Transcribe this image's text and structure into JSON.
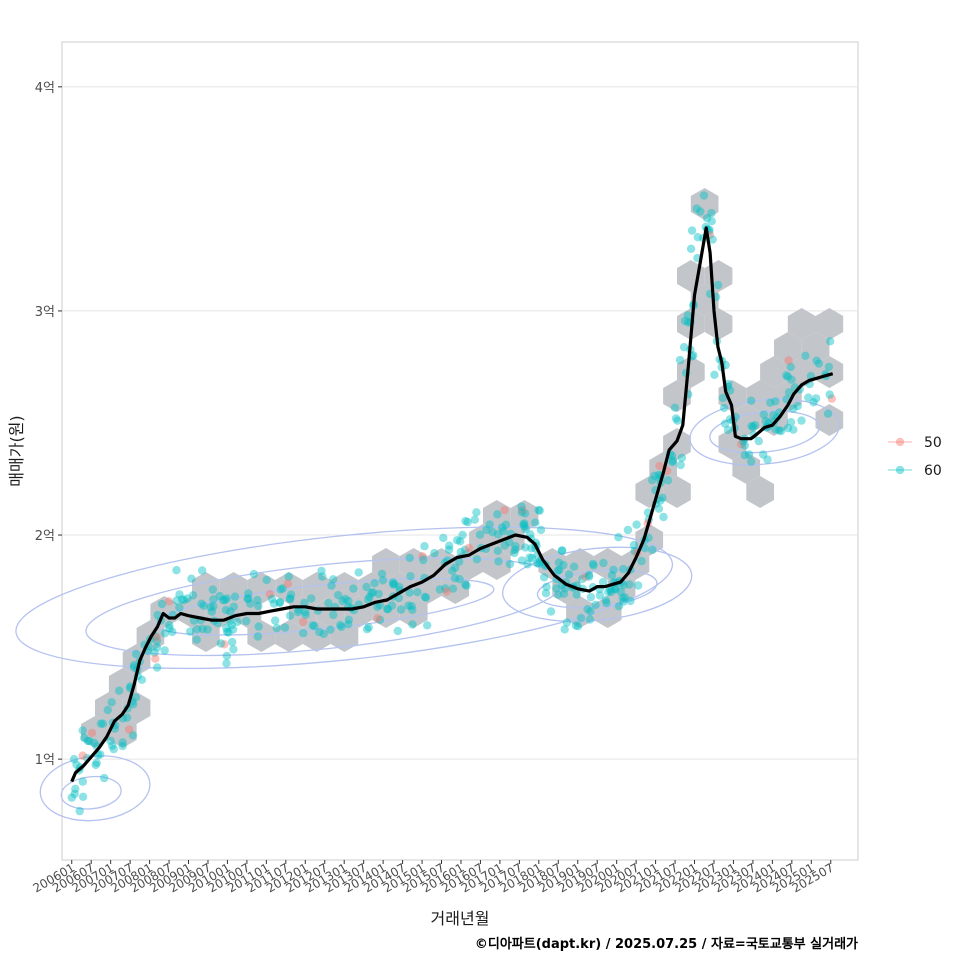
{
  "chart_data": {
    "type": "scatter",
    "xlabel": "거래년월",
    "ylabel": "매매가(원)",
    "caption": "©디아파트(dapt.kr) / 2025.07.25 / 자료=국토교통부 실거래가",
    "ylim": [
      0.55,
      4.2
    ],
    "xlim": [
      2005.75,
      2026.2
    ],
    "y_ticks": [
      {
        "value": 1,
        "label": "1억"
      },
      {
        "value": 2,
        "label": "2억"
      },
      {
        "value": 3,
        "label": "3억"
      },
      {
        "value": 4,
        "label": "4억"
      }
    ],
    "x_ticks": [
      "200601",
      "200607",
      "200701",
      "200707",
      "200801",
      "200807",
      "200901",
      "200907",
      "201001",
      "201007",
      "201101",
      "201107",
      "201201",
      "201207",
      "201301",
      "201307",
      "201401",
      "201407",
      "201501",
      "201507",
      "201601",
      "201607",
      "201701",
      "201707",
      "201801",
      "201807",
      "201901",
      "201907",
      "202001",
      "202007",
      "202101",
      "202107",
      "202201",
      "202207",
      "202301",
      "202307",
      "202401",
      "202407",
      "202501",
      "202507"
    ],
    "legend": {
      "title": "",
      "entries": [
        {
          "label": "50",
          "color": "#F8766D"
        },
        {
          "label": "60",
          "color": "#00BFC4"
        }
      ]
    },
    "series": [
      {
        "name": "이동평균",
        "type": "line",
        "color": "#000000",
        "points": [
          [
            2006.0,
            0.9
          ],
          [
            2006.1,
            0.94
          ],
          [
            2006.3,
            0.97
          ],
          [
            2006.5,
            1.01
          ],
          [
            2006.7,
            1.05
          ],
          [
            2006.9,
            1.1
          ],
          [
            2007.1,
            1.17
          ],
          [
            2007.3,
            1.2
          ],
          [
            2007.45,
            1.24
          ],
          [
            2007.6,
            1.33
          ],
          [
            2007.75,
            1.44
          ],
          [
            2007.9,
            1.5
          ],
          [
            2008.05,
            1.55
          ],
          [
            2008.2,
            1.59
          ],
          [
            2008.35,
            1.65
          ],
          [
            2008.5,
            1.63
          ],
          [
            2008.65,
            1.63
          ],
          [
            2008.8,
            1.65
          ],
          [
            2009.0,
            1.64
          ],
          [
            2009.3,
            1.63
          ],
          [
            2009.6,
            1.62
          ],
          [
            2009.9,
            1.62
          ],
          [
            2010.2,
            1.64
          ],
          [
            2010.5,
            1.65
          ],
          [
            2010.8,
            1.65
          ],
          [
            2011.1,
            1.66
          ],
          [
            2011.4,
            1.67
          ],
          [
            2011.7,
            1.68
          ],
          [
            2012.0,
            1.68
          ],
          [
            2012.3,
            1.67
          ],
          [
            2012.6,
            1.67
          ],
          [
            2012.9,
            1.67
          ],
          [
            2013.2,
            1.67
          ],
          [
            2013.5,
            1.68
          ],
          [
            2013.8,
            1.7
          ],
          [
            2014.1,
            1.71
          ],
          [
            2014.4,
            1.74
          ],
          [
            2014.7,
            1.77
          ],
          [
            2015.0,
            1.79
          ],
          [
            2015.3,
            1.82
          ],
          [
            2015.6,
            1.87
          ],
          [
            2015.9,
            1.9
          ],
          [
            2016.2,
            1.91
          ],
          [
            2016.5,
            1.94
          ],
          [
            2016.8,
            1.96
          ],
          [
            2017.1,
            1.98
          ],
          [
            2017.4,
            2.0
          ],
          [
            2017.7,
            1.99
          ],
          [
            2017.9,
            1.96
          ],
          [
            2018.1,
            1.89
          ],
          [
            2018.4,
            1.82
          ],
          [
            2018.7,
            1.78
          ],
          [
            2019.0,
            1.76
          ],
          [
            2019.3,
            1.75
          ],
          [
            2019.5,
            1.77
          ],
          [
            2019.7,
            1.77
          ],
          [
            2019.9,
            1.78
          ],
          [
            2020.1,
            1.79
          ],
          [
            2020.3,
            1.83
          ],
          [
            2020.5,
            1.9
          ],
          [
            2020.7,
            1.98
          ],
          [
            2020.85,
            2.07
          ],
          [
            2021.0,
            2.16
          ],
          [
            2021.2,
            2.28
          ],
          [
            2021.35,
            2.38
          ],
          [
            2021.55,
            2.42
          ],
          [
            2021.7,
            2.49
          ],
          [
            2021.85,
            2.77
          ],
          [
            2022.0,
            3.07
          ],
          [
            2022.15,
            3.22
          ],
          [
            2022.3,
            3.37
          ],
          [
            2022.4,
            3.26
          ],
          [
            2022.5,
            3.0
          ],
          [
            2022.6,
            2.84
          ],
          [
            2022.7,
            2.77
          ],
          [
            2022.8,
            2.64
          ],
          [
            2022.95,
            2.58
          ],
          [
            2023.05,
            2.44
          ],
          [
            2023.2,
            2.43
          ],
          [
            2023.45,
            2.43
          ],
          [
            2023.6,
            2.45
          ],
          [
            2023.8,
            2.48
          ],
          [
            2024.0,
            2.49
          ],
          [
            2024.2,
            2.53
          ],
          [
            2024.4,
            2.58
          ],
          [
            2024.55,
            2.63
          ],
          [
            2024.75,
            2.67
          ],
          [
            2024.95,
            2.69
          ],
          [
            2025.15,
            2.7
          ],
          [
            2025.35,
            2.71
          ],
          [
            2025.55,
            2.72
          ]
        ]
      }
    ]
  }
}
